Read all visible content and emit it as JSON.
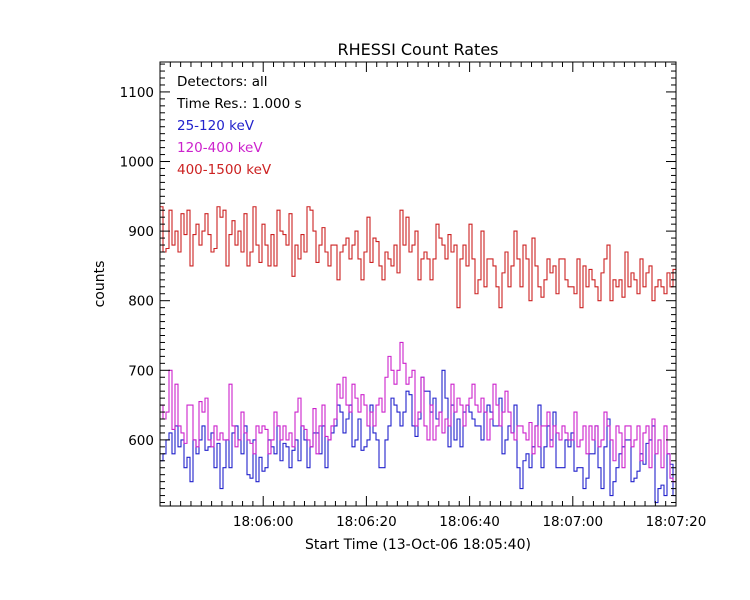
{
  "chart_data": {
    "type": "line",
    "title": "RHESSI Count Rates",
    "xlabel": "Start Time (13-Oct-06 18:05:40)",
    "ylabel": "counts",
    "x_ticks": [
      "18:06:00",
      "18:06:20",
      "18:06:40",
      "18:07:00",
      "18:07:20"
    ],
    "x_tick_seconds": [
      20,
      40,
      60,
      80,
      100
    ],
    "y_ticks": [
      600,
      700,
      800,
      900,
      1000,
      1100
    ],
    "xlim_seconds": [
      0,
      100
    ],
    "ylim": [
      505,
      1143
    ],
    "step": 1.0,
    "annotations": {
      "detectors": "Detectors: all",
      "time_res": "Time Res.: 1.000 s"
    },
    "series": [
      {
        "name": "25-120 keV",
        "color": "#2222cc",
        "values": [
          570,
          580,
          600,
          610,
          580,
          620,
          590,
          600,
          560,
          575,
          540,
          600,
          580,
          600,
          620,
          585,
          590,
          610,
          560,
          595,
          530,
          560,
          600,
          560,
          610,
          620,
          600,
          580,
          620,
          550,
          545,
          600,
          540,
          575,
          555,
          560,
          600,
          590,
          580,
          620,
          570,
          595,
          590,
          560,
          585,
          600,
          570,
          620,
          600,
          560,
          590,
          610,
          610,
          580,
          620,
          560,
          600,
          610,
          620,
          650,
          640,
          610,
          630,
          650,
          590,
          600,
          630,
          585,
          590,
          600,
          650,
          610,
          600,
          560,
          560,
          600,
          620,
          660,
          650,
          640,
          620,
          640,
          670,
          665,
          620,
          605,
          630,
          690,
          670,
          670,
          640,
          660,
          630,
          640,
          700,
          660,
          590,
          650,
          600,
          630,
          590,
          640,
          650,
          640,
          630,
          620,
          620,
          600,
          640,
          650,
          640,
          620,
          620,
          660,
          580,
          600,
          620,
          610,
          650,
          560,
          530,
          570,
          580,
          560,
          590,
          620,
          650,
          560,
          590,
          620,
          600,
          640,
          560,
          560,
          560,
          600,
          590,
          610,
          555,
          560,
          560,
          530,
          545,
          580,
          580,
          620,
          560,
          530,
          590,
          630,
          520,
          540,
          560,
          580,
          590,
          600,
          600,
          540,
          545,
          555,
          580,
          565,
          595,
          600,
          620,
          510,
          530,
          535,
          520,
          580,
          565,
          520
        ]
      },
      {
        "name": "120-400 keV",
        "color": "#cc22cc",
        "values": [
          650,
          630,
          640,
          700,
          615,
          680,
          620,
          610,
          595,
          650,
          650,
          600,
          590,
          655,
          640,
          660,
          600,
          590,
          620,
          600,
          610,
          600,
          600,
          680,
          620,
          590,
          600,
          640,
          610,
          600,
          595,
          580,
          620,
          610,
          620,
          615,
          580,
          600,
          640,
          620,
          600,
          620,
          600,
          610,
          590,
          640,
          660,
          620,
          615,
          600,
          590,
          645,
          580,
          620,
          650,
          605,
          600,
          620,
          630,
          680,
          660,
          690,
          650,
          640,
          680,
          660,
          640,
          665,
          650,
          620,
          640,
          620,
          650,
          660,
          640,
          690,
          720,
          700,
          680,
          700,
          740,
          710,
          680,
          690,
          700,
          620,
          640,
          690,
          620,
          600,
          650,
          600,
          620,
          640,
          610,
          630,
          620,
          680,
          640,
          660,
          650,
          620,
          650,
          660,
          680,
          650,
          640,
          660,
          640,
          600,
          630,
          680,
          650,
          620,
          640,
          670,
          640,
          610,
          600,
          620,
          620,
          610,
          600,
          625,
          580,
          620,
          590,
          620,
          620,
          640,
          590,
          620,
          610,
          600,
          620,
          610,
          600,
          600,
          640,
          590,
          600,
          620,
          580,
          620,
          600,
          620,
          590,
          600,
          640,
          620,
          600,
          570,
          620,
          610,
          560,
          620,
          620,
          590,
          600,
          620,
          570,
          610,
          620,
          560,
          630,
          580,
          600,
          560,
          620,
          580,
          545,
          540
        ]
      },
      {
        "name": "400-1500 keV",
        "color": "#cc2222",
        "values": [
          935,
          870,
          875,
          930,
          880,
          900,
          870,
          925,
          895,
          930,
          850,
          895,
          910,
          880,
          900,
          925,
          895,
          870,
          875,
          935,
          920,
          930,
          850,
          895,
          915,
          880,
          900,
          870,
          925,
          850,
          870,
          935,
          880,
          855,
          910,
          880,
          850,
          895,
          850,
          930,
          900,
          895,
          880,
          925,
          835,
          880,
          860,
          895,
          870,
          935,
          930,
          900,
          855,
          880,
          905,
          870,
          850,
          880,
          880,
          830,
          870,
          880,
          890,
          860,
          880,
          900,
          860,
          830,
          870,
          920,
          855,
          890,
          885,
          850,
          830,
          870,
          860,
          850,
          880,
          840,
          930,
          880,
          920,
          870,
          880,
          900,
          830,
          860,
          870,
          860,
          830,
          860,
          910,
          890,
          880,
          860,
          895,
          870,
          880,
          790,
          860,
          880,
          850,
          910,
          860,
          810,
          830,
          900,
          820,
          860,
          860,
          850,
          820,
          790,
          840,
          870,
          820,
          850,
          900,
          860,
          820,
          880,
          860,
          800,
          890,
          850,
          820,
          805,
          830,
          860,
          840,
          850,
          810,
          860,
          860,
          830,
          820,
          820,
          810,
          860,
          790,
          850,
          820,
          845,
          830,
          820,
          800,
          840,
          860,
          880,
          800,
          830,
          820,
          830,
          805,
          870,
          820,
          840,
          830,
          810,
          860,
          820,
          840,
          850,
          800,
          820,
          830,
          820,
          810,
          840,
          820,
          845
        ]
      }
    ]
  }
}
